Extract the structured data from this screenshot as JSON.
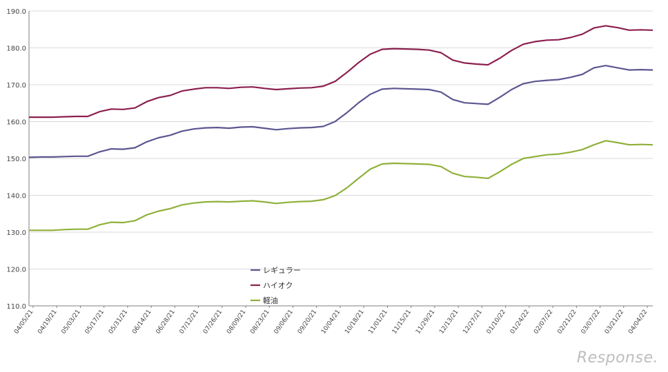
{
  "chart_data": {
    "type": "line",
    "ylim": [
      110,
      190
    ],
    "yticks": [
      "110.0",
      "120.0",
      "130.0",
      "140.0",
      "150.0",
      "160.0",
      "170.0",
      "180.0",
      "190.0"
    ],
    "x_labels": [
      "04/05/21",
      "04/19/21",
      "05/03/21",
      "05/17/21",
      "05/31/21",
      "06/14/21",
      "06/28/21",
      "07/12/21",
      "07/26/21",
      "08/09/21",
      "08/23/21",
      "09/06/21",
      "09/20/21",
      "10/04/21",
      "10/18/21",
      "11/01/21",
      "11/15/21",
      "11/29/21",
      "12/13/21",
      "12/27/21",
      "01/10/22",
      "01/24/22",
      "02/07/22",
      "02/21/22",
      "03/07/22",
      "03/21/22",
      "04/04/22"
    ],
    "grid": true,
    "legend_placement": "center-bottom",
    "series": [
      {
        "name": "レギュラー",
        "color": "#5b5691",
        "values": [
          150.3,
          150.4,
          150.4,
          150.5,
          150.6,
          150.6,
          151.8,
          152.6,
          152.5,
          152.9,
          154.5,
          155.6,
          156.3,
          157.4,
          158.0,
          158.3,
          158.4,
          158.2,
          158.5,
          158.6,
          158.2,
          157.8,
          158.1,
          158.3,
          158.4,
          158.7,
          160.0,
          162.4,
          165.1,
          167.4,
          168.8,
          169.0,
          168.9,
          168.8,
          168.7,
          168.0,
          166.0,
          165.1,
          164.9,
          164.7,
          166.6,
          168.7,
          170.3,
          170.9,
          171.2,
          171.4,
          172.0,
          172.8,
          174.6,
          175.2,
          174.6,
          174.0,
          174.1,
          174.0
        ]
      },
      {
        "name": "ハイオク",
        "color": "#8b1f4f",
        "values": [
          161.2,
          161.2,
          161.2,
          161.3,
          161.4,
          161.4,
          162.7,
          163.4,
          163.3,
          163.7,
          165.4,
          166.5,
          167.1,
          168.3,
          168.8,
          169.2,
          169.2,
          169.0,
          169.3,
          169.4,
          169.0,
          168.7,
          168.9,
          169.1,
          169.2,
          169.6,
          170.9,
          173.3,
          176.0,
          178.3,
          179.6,
          179.8,
          179.7,
          179.6,
          179.4,
          178.7,
          176.7,
          175.9,
          175.6,
          175.4,
          177.2,
          179.3,
          181.0,
          181.7,
          182.1,
          182.2,
          182.8,
          183.7,
          185.4,
          186.0,
          185.5,
          184.8,
          184.9,
          184.8
        ]
      },
      {
        "name": "軽油",
        "color": "#8fb03a",
        "values": [
          130.5,
          130.5,
          130.5,
          130.7,
          130.8,
          130.8,
          132.0,
          132.7,
          132.6,
          133.1,
          134.7,
          135.7,
          136.4,
          137.4,
          137.9,
          138.2,
          138.3,
          138.2,
          138.4,
          138.5,
          138.2,
          137.8,
          138.1,
          138.3,
          138.4,
          138.8,
          139.9,
          142.0,
          144.6,
          147.1,
          148.5,
          148.7,
          148.6,
          148.5,
          148.4,
          147.8,
          146.0,
          145.1,
          144.9,
          144.6,
          146.4,
          148.4,
          150.0,
          150.5,
          151.0,
          151.2,
          151.7,
          152.4,
          153.7,
          154.8,
          154.3,
          153.7,
          153.8,
          153.7
        ]
      }
    ]
  },
  "logo": {
    "text": "Response."
  }
}
